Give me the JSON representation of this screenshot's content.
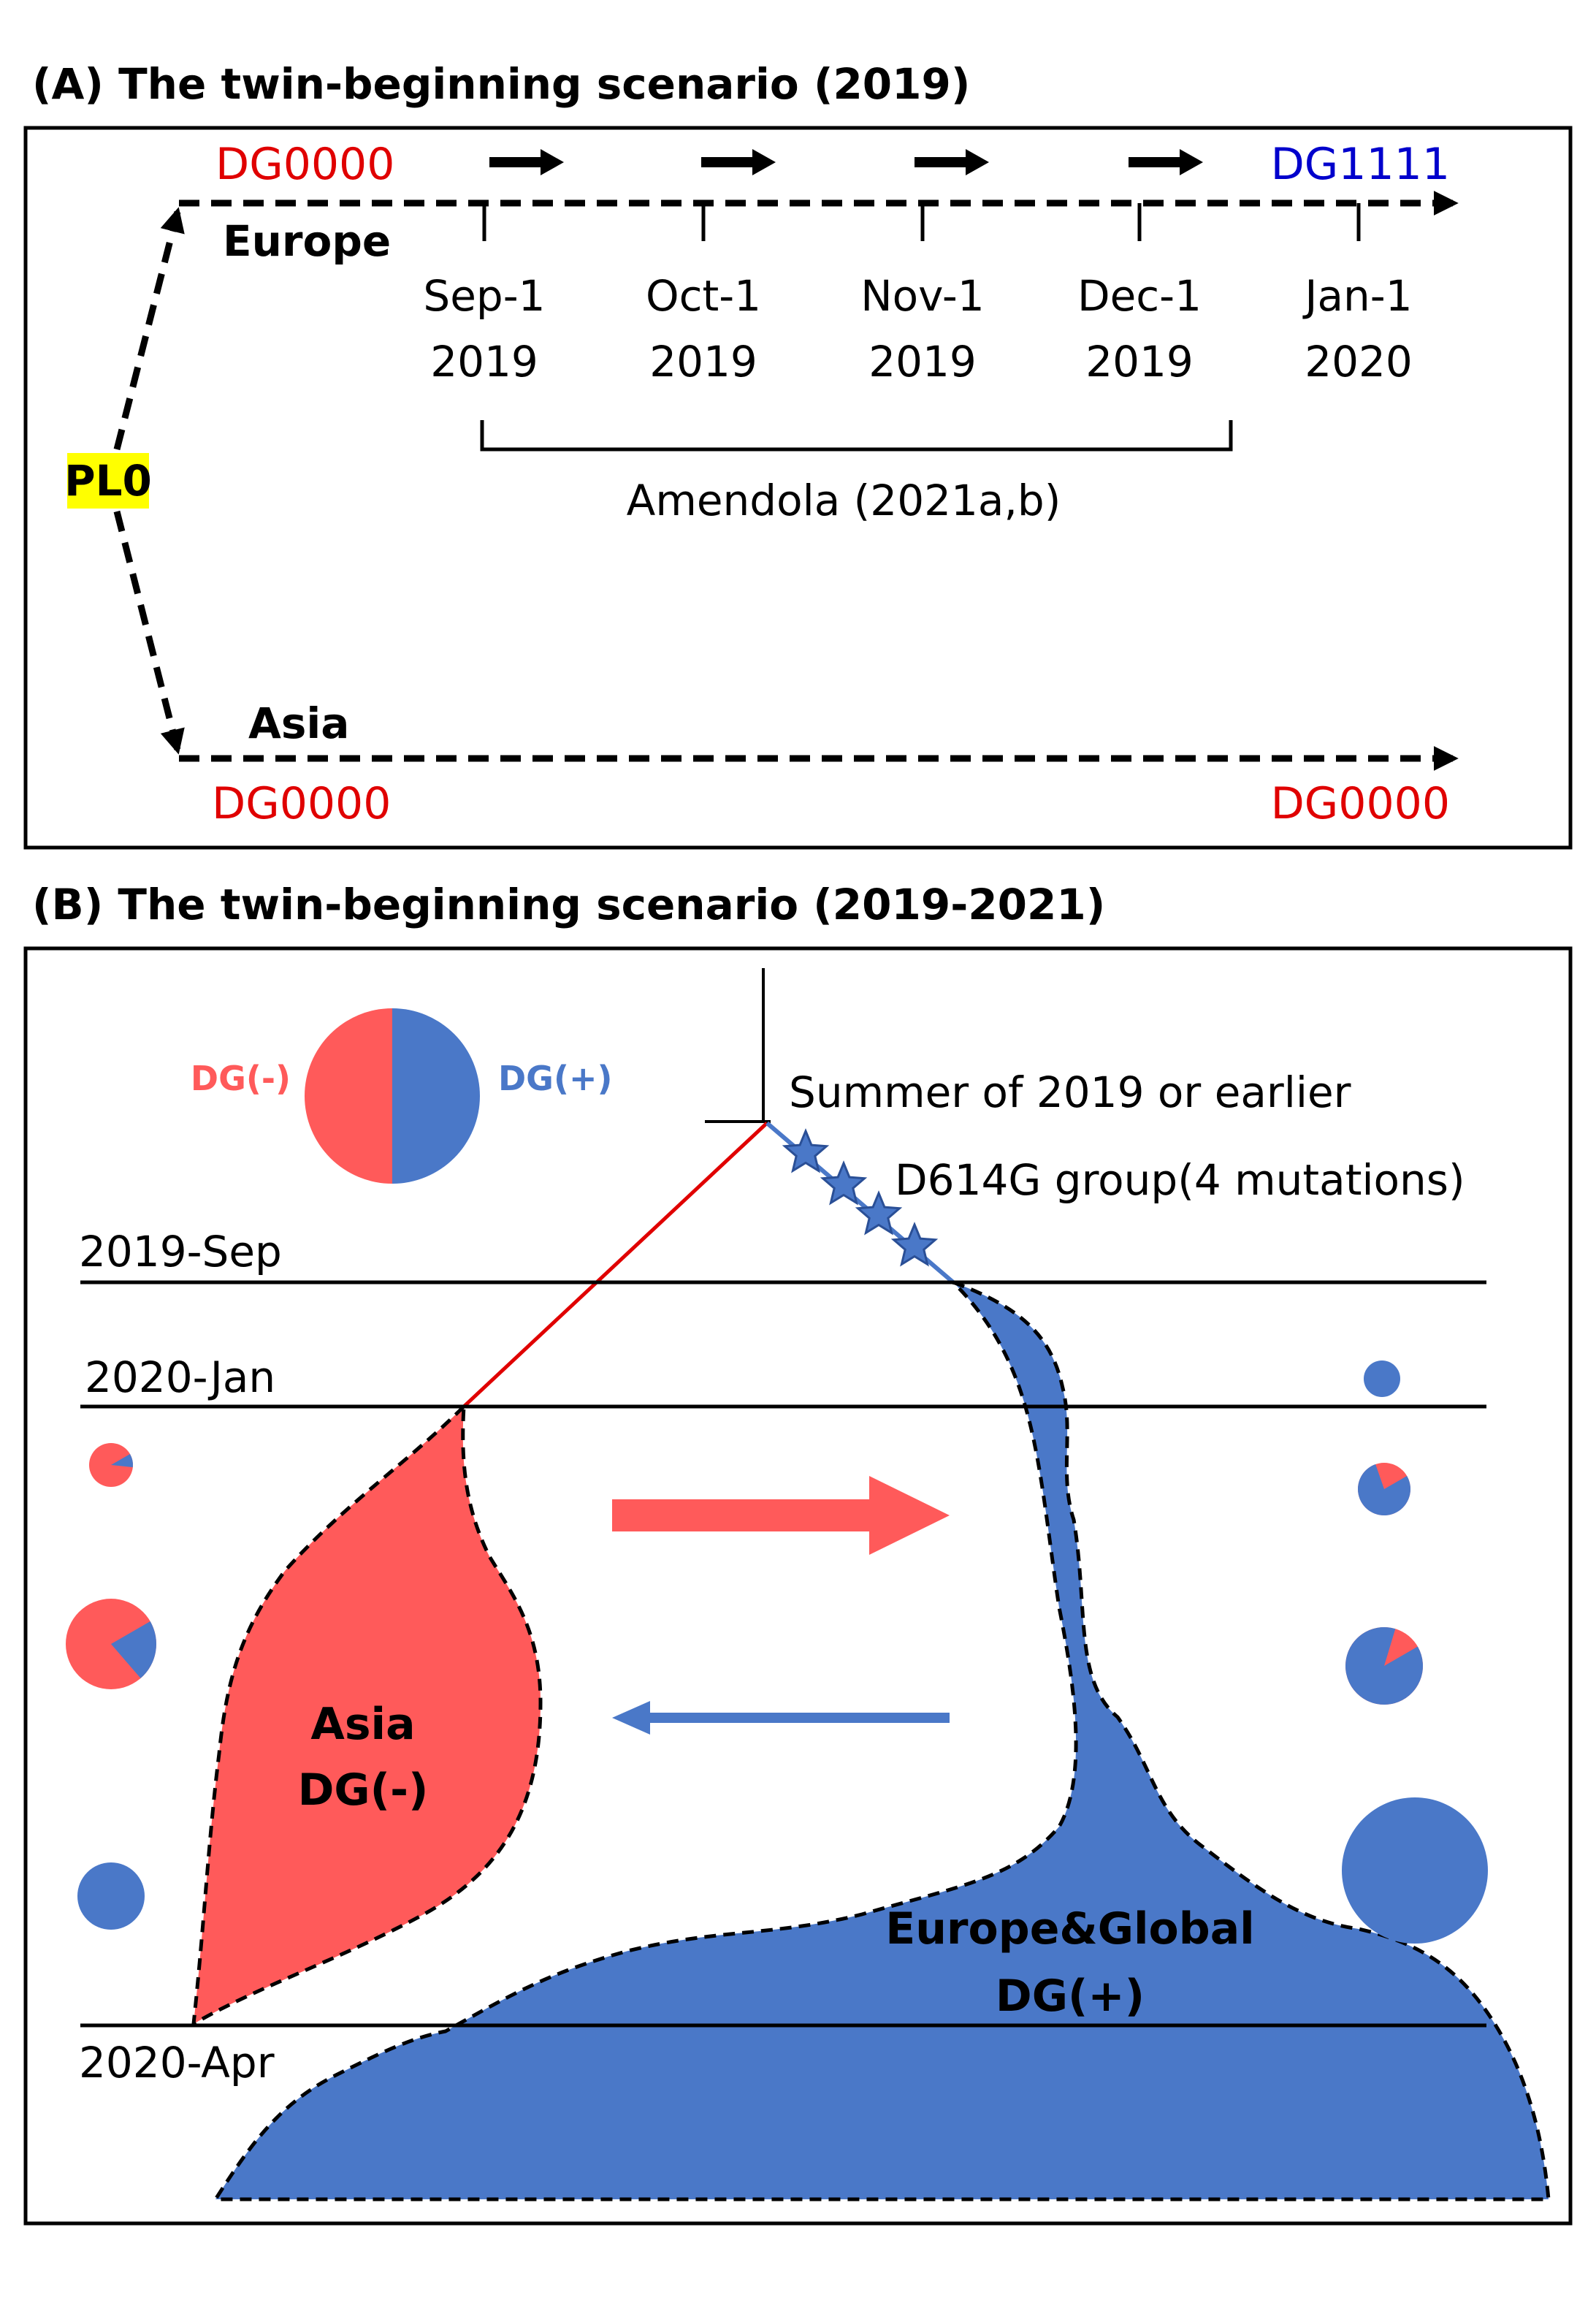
{
  "colors": {
    "dg_minus": "#ff5a5a",
    "dg_plus": "#4a78c8",
    "dg_red_text": "#e00000",
    "dg_blue_text": "#0000cc",
    "highlight": "#ffff00",
    "edge": "#000000",
    "tree_red": "#e00000"
  },
  "panel_a": {
    "title": "(A) The twin-beginning scenario (2019)",
    "pl0_label": "PL0",
    "europe": {
      "label": "Europe",
      "start_genotype": "DG0000",
      "end_genotype": "DG1111",
      "ticks": [
        {
          "month": "Sep-1",
          "year": "2019"
        },
        {
          "month": "Oct-1",
          "year": "2019"
        },
        {
          "month": "Nov-1",
          "year": "2019"
        },
        {
          "month": "Dec-1",
          "year": "2019"
        },
        {
          "month": "Jan-1",
          "year": "2020"
        }
      ],
      "bracket_label": "Amendola (2021a,b)"
    },
    "asia": {
      "label": "Asia",
      "start_genotype": "DG0000",
      "end_genotype": "DG0000"
    }
  },
  "panel_b": {
    "title": "(B) The twin-beginning scenario (2019-2021)",
    "legend": {
      "minus_label": "DG(-)",
      "plus_label": "DG(+)"
    },
    "root_label": "Summer of 2019 or earlier",
    "mutation_label": "D614G group(4 mutations)",
    "time_marks": [
      "2019-Sep",
      "2020-Jan",
      "2020-Apr"
    ],
    "asia_region": {
      "line1": "Asia",
      "line2": "DG(-)"
    },
    "europe_region": {
      "line1": "Europe&Global",
      "line2": "DG(+)"
    },
    "asia_pies": [
      {
        "dg_plus_fraction": 0.1
      },
      {
        "dg_plus_fraction": 0.22
      },
      {
        "dg_plus_fraction": 1.0
      }
    ],
    "europe_pies": [
      {
        "dg_plus_fraction": 1.0
      },
      {
        "dg_plus_fraction": 0.78
      },
      {
        "dg_plus_fraction": 0.88
      },
      {
        "dg_plus_fraction": 1.0
      }
    ]
  }
}
